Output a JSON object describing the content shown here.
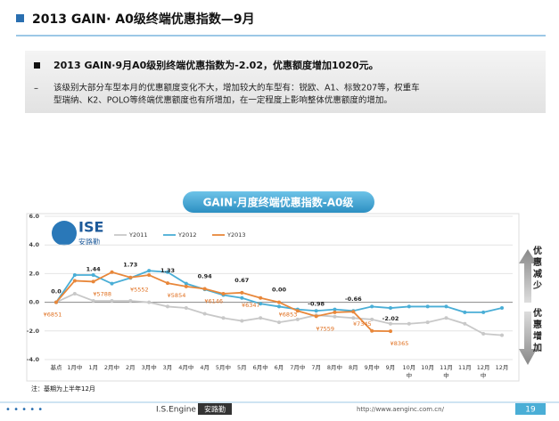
{
  "header": {
    "title": "2013 GAIN· A0级终端优惠指数—9月"
  },
  "summary": {
    "bullet": "2013 GAIN·9月A0级别终端优惠指数为-2.02，优惠额度增加1020元。",
    "detail_lines": [
      "该级别大部分车型本月的优惠额度变化不大，增加较大的车型有：锐欧、A1、标致207等，权重车",
      "型瑞纳、K2、POLO等终端优惠额度也有所增加，在一定程度上影响整体优惠额度的增加。"
    ]
  },
  "logo": {
    "name": "ISE",
    "subname": "安路勤"
  },
  "side_labels": {
    "up": "优惠减少",
    "down": "优惠增加"
  },
  "chart_data": {
    "type": "line",
    "title": "GAIN·月度终端优惠指数-A0级",
    "categories": [
      "基点",
      "1月中",
      "1月",
      "2月中",
      "2月",
      "3月中",
      "3月",
      "4月中",
      "4月",
      "5月中",
      "5月",
      "6月中",
      "6月",
      "7月中",
      "7月",
      "8月中",
      "8月",
      "9月中",
      "9月",
      "10月中",
      "10月",
      "11月中",
      "11月",
      "12月中",
      "12月"
    ],
    "series": [
      {
        "name": "Y2011",
        "color": "#c8c8c8",
        "values": [
          0,
          0.6,
          0.1,
          0.1,
          0.1,
          0.0,
          -0.3,
          -0.4,
          -0.8,
          -1.1,
          -1.3,
          -1.1,
          -1.4,
          -1.2,
          -0.9,
          -1.0,
          -1.1,
          -1.2,
          -1.5,
          -1.5,
          -1.4,
          -1.1,
          -1.5,
          -2.2,
          -2.3
        ]
      },
      {
        "name": "Y2012",
        "color": "#4aaed6",
        "values": [
          0,
          1.9,
          1.9,
          1.3,
          1.7,
          2.2,
          2.1,
          1.3,
          0.9,
          0.5,
          0.3,
          -0.1,
          -0.3,
          -0.5,
          -0.6,
          -0.5,
          -0.6,
          -0.3,
          -0.4,
          -0.3,
          -0.3,
          -0.3,
          -0.7,
          -0.7,
          -0.4
        ]
      },
      {
        "name": "Y2013",
        "color": "#e8873a",
        "values": [
          0,
          1.5,
          1.44,
          2.1,
          1.73,
          1.9,
          1.33,
          1.1,
          0.94,
          0.6,
          0.67,
          0.3,
          0,
          -0.6,
          -0.98,
          -0.7,
          -0.66,
          -2.0,
          -2.02,
          null,
          null,
          null,
          null,
          null,
          null
        ],
        "value_labels": [
          "0.0",
          null,
          "1.44",
          null,
          "1.73",
          null,
          "1.33",
          null,
          "0.94",
          null,
          "0.67",
          null,
          "0.00",
          null,
          "-0.98",
          null,
          "-0.66",
          null,
          "-2.02",
          null,
          null,
          null,
          null,
          null,
          null
        ],
        "amount_labels": [
          "¥6851",
          null,
          "¥5788",
          null,
          "¥5552",
          null,
          "¥5854",
          null,
          "¥6146",
          null,
          "¥6347",
          null,
          "¥6853",
          null,
          "¥7559",
          null,
          "¥7345",
          null,
          "¥8365",
          null,
          null,
          null,
          null,
          null,
          null
        ]
      }
    ],
    "ylim": [
      -4,
      6
    ],
    "yticks": [
      {
        "value": 6,
        "label": "6.0"
      },
      {
        "value": 4,
        "label": "4.0"
      },
      {
        "value": 2,
        "label": "2.0"
      },
      {
        "value": 0,
        "label": "0.0"
      },
      {
        "value": -2,
        "label": "-2.0"
      },
      {
        "value": -4,
        "label": "-4.0"
      }
    ],
    "grid": true,
    "legend": "top"
  },
  "note": "注：基期为上半年12月",
  "footer": {
    "brand": "I.S.Engine",
    "brand_cn": "安路勤",
    "url": "http://www.aenginc.com.cn/",
    "page": "19"
  }
}
